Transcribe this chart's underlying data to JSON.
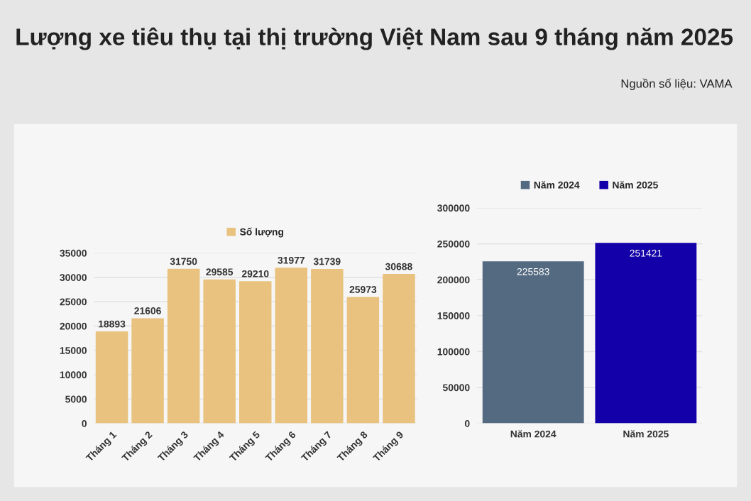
{
  "chart_data": [
    {
      "type": "bar",
      "title": "Lượng xe tiêu thụ tại thị trường Việt Nam sau 9 tháng năm 2025",
      "annotations": [
        "Nguồn số liệu: VAMA"
      ],
      "categories": [
        "Tháng 1",
        "Tháng 2",
        "Tháng 3",
        "Tháng 4",
        "Tháng 5",
        "Tháng 6",
        "Tháng 7",
        "Tháng 8",
        "Tháng 9"
      ],
      "series": [
        {
          "name": "Số lượng",
          "color": "#e8c27e",
          "values": [
            18893,
            21606,
            31750,
            29585,
            29210,
            31977,
            31739,
            25973,
            30688
          ]
        }
      ],
      "ylim": [
        0,
        35000
      ],
      "yticks": [
        0,
        5000,
        10000,
        15000,
        20000,
        25000,
        30000,
        35000
      ],
      "grid": "y",
      "legend": "top",
      "data_labels": true
    },
    {
      "type": "bar",
      "categories": [
        "Năm 2024",
        "Năm 2025"
      ],
      "stacked": true,
      "series": [
        {
          "name": "Năm 2024",
          "color": "#546a80",
          "values": [
            225583,
            null
          ]
        },
        {
          "name": "Năm 2025",
          "color": "#1400a8",
          "values": [
            null,
            251421
          ]
        }
      ],
      "ylim": [
        0,
        300000
      ],
      "yticks": [
        0,
        50000,
        100000,
        150000,
        200000,
        250000,
        300000
      ],
      "grid": "y",
      "legend": "top",
      "data_labels": true
    }
  ]
}
